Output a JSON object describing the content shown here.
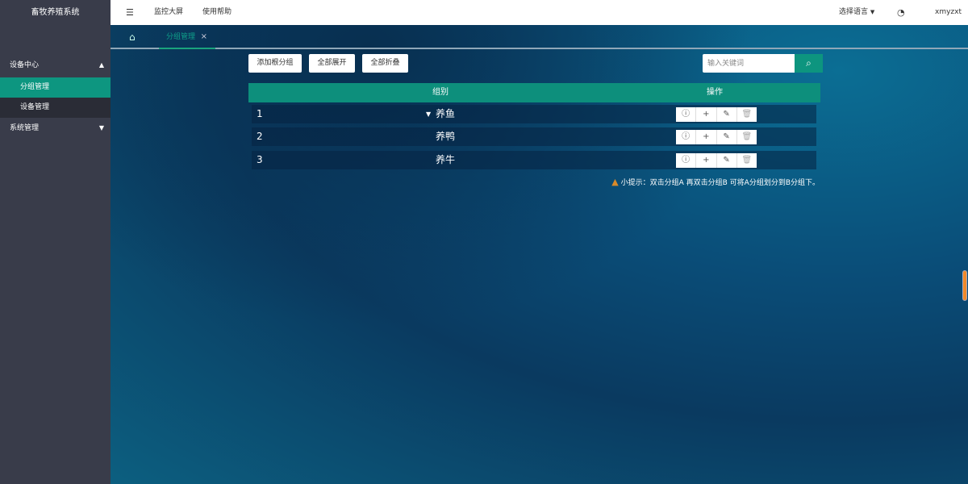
{
  "app": {
    "title": "畜牧养殖系统"
  },
  "sidebar": {
    "groups": [
      {
        "label": "设备中心",
        "expanded": true,
        "items": [
          {
            "label": "分组管理",
            "active": true
          },
          {
            "label": "设备管理"
          }
        ]
      },
      {
        "label": "系统管理",
        "expanded": false
      }
    ]
  },
  "header": {
    "menu_icon": "hamburger-icon",
    "links": [
      "监控大屏",
      "使用帮助"
    ],
    "language": "选择语言",
    "theme_icon": "palette-icon",
    "user": "xmyzxt"
  },
  "tabs": [
    {
      "label": "分组管理",
      "active": true
    }
  ],
  "toolbar": {
    "add_root": "添加根分组",
    "expand_all": "全部展开",
    "collapse_all": "全部折叠",
    "search_placeholder": "输入关键词"
  },
  "table": {
    "columns": [
      "组别",
      "操作"
    ],
    "rows": [
      {
        "index": "1",
        "name": "养鱼",
        "expandable": true
      },
      {
        "index": "2",
        "name": "养鸭"
      },
      {
        "index": "3",
        "name": "养牛"
      }
    ],
    "actions": [
      "info-icon",
      "plus-icon",
      "edit-icon",
      "trash-icon"
    ]
  },
  "tip": "小提示：双击分组A 再双击分组B 可将A分组划分到B分组下。",
  "colors": {
    "accent": "#0d8f7c",
    "sidebar": "#393c4a"
  }
}
